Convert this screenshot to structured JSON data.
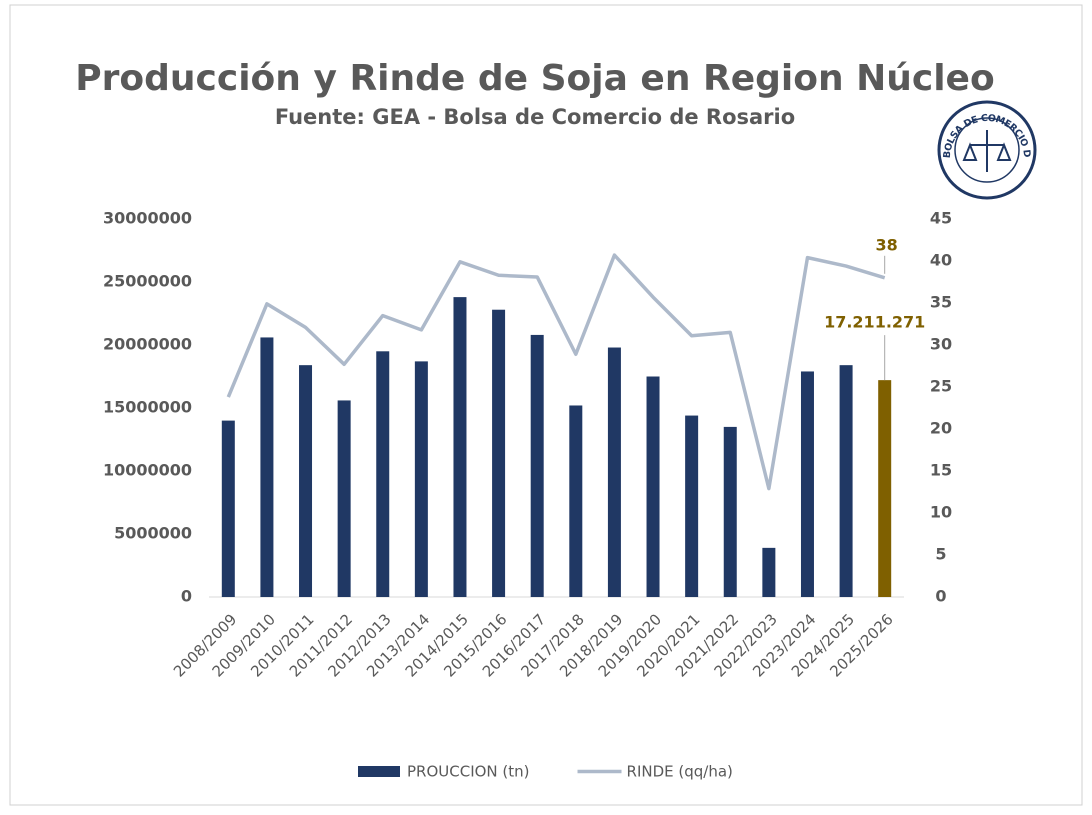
{
  "chart_data": {
    "type": "bar",
    "title": "Producción y Rinde de Soja en Region Núcleo",
    "subtitle": "Fuente: GEA - Bolsa de Comercio de Rosario",
    "logo_text": "BOLSA DE COMERCIO DE ROSARIO",
    "categories": [
      "2008/2009",
      "2009/2010",
      "2010/2011",
      "2011/2012",
      "2012/2013",
      "2013/2014",
      "2014/2015",
      "2015/2016",
      "2016/2017",
      "2017/2018",
      "2018/2019",
      "2019/2020",
      "2020/2021",
      "2021/2022",
      "2022/2023",
      "2023/2024",
      "2024/2025",
      "2025/2026"
    ],
    "series": [
      {
        "name": "PROUCCION (tn)",
        "type": "bar",
        "color": "#203864",
        "colors": [
          "#203864",
          "#203864",
          "#203864",
          "#203864",
          "#203864",
          "#203864",
          "#203864",
          "#203864",
          "#203864",
          "#203864",
          "#203864",
          "#203864",
          "#203864",
          "#203864",
          "#203864",
          "#203864",
          "#203864",
          "#7f6000"
        ],
        "values": [
          14000000,
          20600000,
          18400000,
          15600000,
          19500000,
          18700000,
          23800000,
          22800000,
          20800000,
          15200000,
          19800000,
          17500000,
          14400000,
          13500000,
          3900000,
          17900000,
          18400000,
          17211271
        ],
        "value_labels": [
          null,
          null,
          null,
          null,
          null,
          null,
          null,
          null,
          null,
          null,
          null,
          null,
          null,
          null,
          null,
          null,
          null,
          "17.211.271"
        ]
      },
      {
        "name": "RINDE (qq/ha)",
        "type": "line",
        "axis": "y2",
        "color": "#adb9ca",
        "values": [
          23.8,
          34.9,
          32.1,
          27.7,
          33.5,
          31.8,
          39.9,
          38.3,
          38.1,
          28.9,
          40.7,
          35.7,
          31.1,
          31.5,
          12.9,
          40.4,
          39.4,
          38
        ],
        "value_labels": [
          null,
          null,
          null,
          null,
          null,
          null,
          null,
          null,
          null,
          null,
          null,
          null,
          null,
          null,
          null,
          null,
          null,
          "38"
        ]
      }
    ],
    "label_color": "#7f6000",
    "ylim": [
      0,
      30000000
    ],
    "yticks": [
      0,
      5000000,
      10000000,
      15000000,
      20000000,
      25000000,
      30000000
    ],
    "y2lim": [
      0,
      45
    ],
    "y2ticks": [
      0,
      5,
      10,
      15,
      20,
      25,
      30,
      35,
      40,
      45
    ],
    "grid": false,
    "legend": "bottom"
  }
}
